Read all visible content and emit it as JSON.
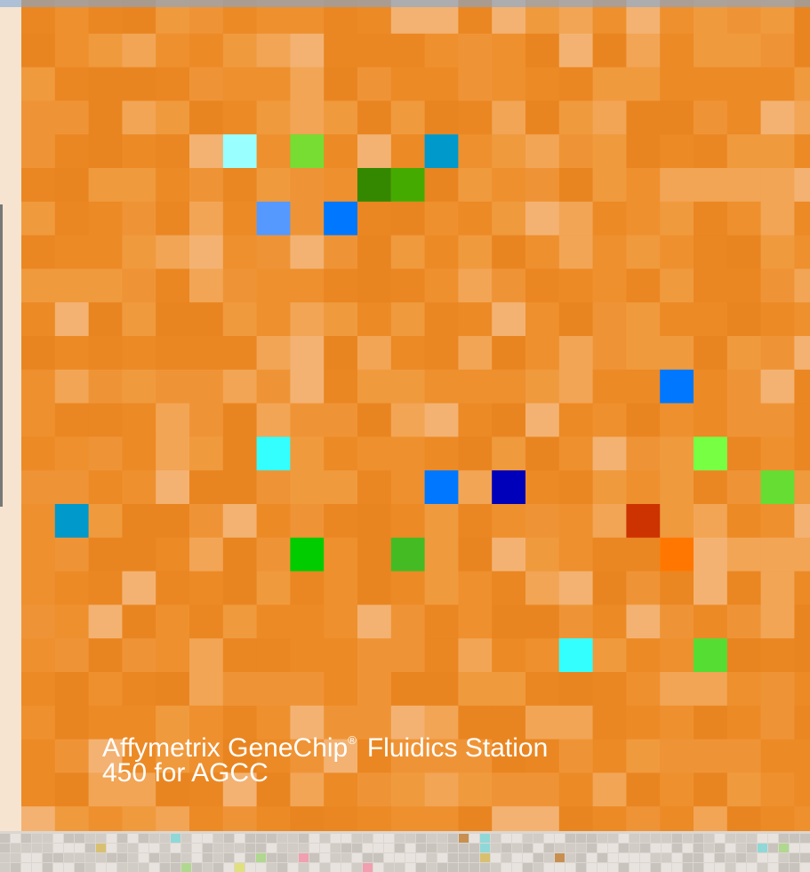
{
  "cover": {
    "title_line1": "Affymetrix GeneChip",
    "registered_mark": "®",
    "title_line1_rest": "Fluidics Station",
    "title_line2": "450 for AGCC"
  }
}
